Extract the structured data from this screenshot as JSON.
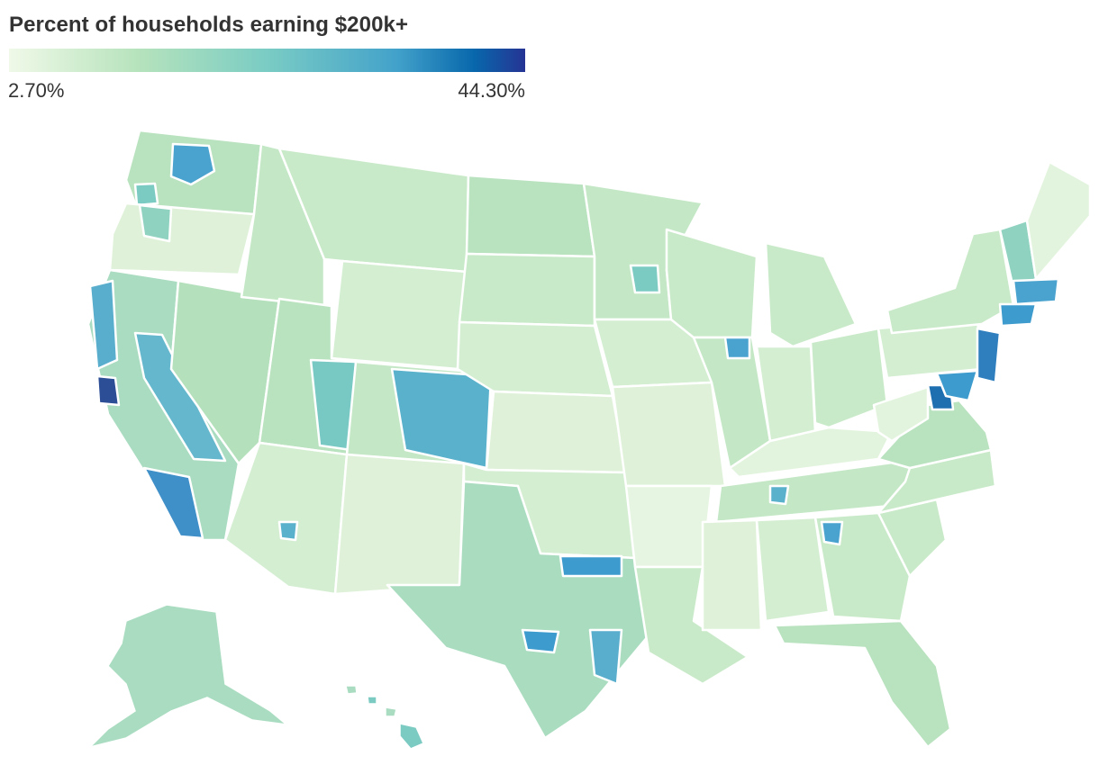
{
  "legend": {
    "title": "Percent of households earning $200k+",
    "min_label": "2.70%",
    "max_label": "44.30%",
    "min_value": 2.7,
    "max_value": 44.3,
    "color_stops": [
      "#f0f9e8",
      "#b6e3bc",
      "#7accc4",
      "#43a2ca",
      "#0868ac",
      "#253494"
    ]
  },
  "map": {
    "base_color": "#c8e8c8",
    "border_color": "#ffffff"
  }
}
